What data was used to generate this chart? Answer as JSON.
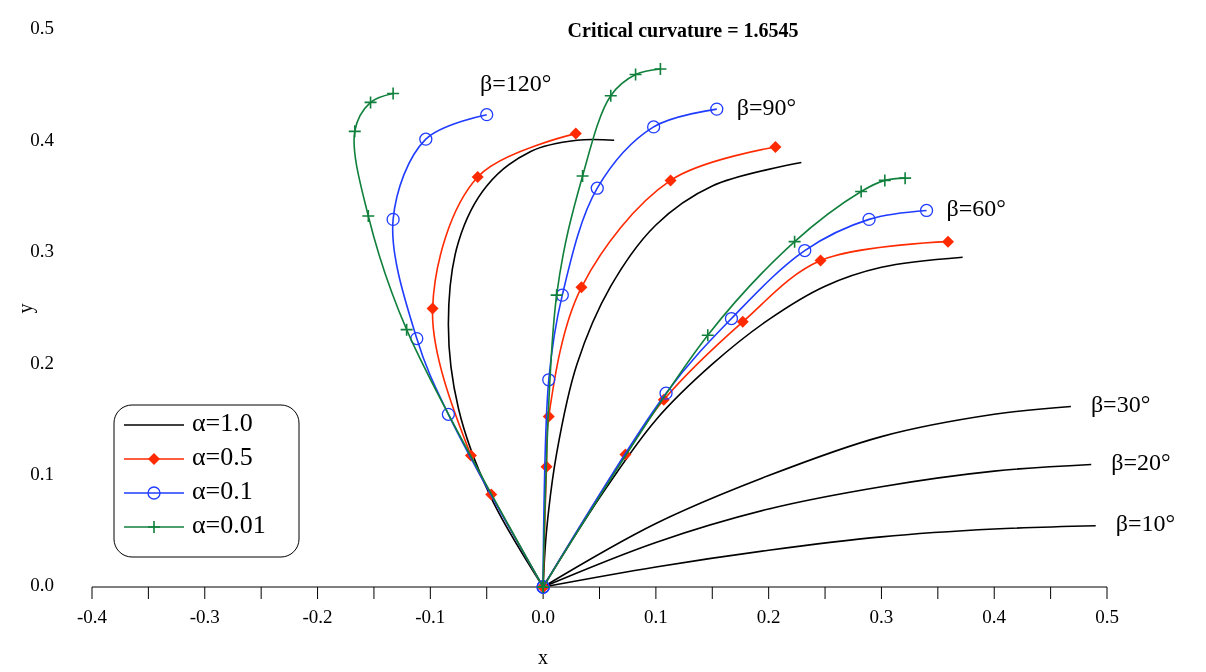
{
  "chart_data": {
    "type": "line",
    "title": "Critical curvature = 1.6545",
    "xlabel": "x",
    "ylabel": "y",
    "xlim": [
      -0.4,
      0.5
    ],
    "ylim": [
      0,
      0.5
    ],
    "xticks": [
      -0.4,
      {
        "value": -0.35,
        "label": null
      },
      -0.3,
      {
        "value": -0.25,
        "label": null
      },
      -0.2,
      {
        "value": -0.15,
        "label": null
      },
      -0.1,
      {
        "value": -0.05,
        "label": null
      },
      {
        "value": 0,
        "label": "0.0"
      },
      {
        "value": 0.05,
        "label": null
      },
      0.1,
      {
        "value": 0.15,
        "label": null
      },
      0.2,
      {
        "value": 0.25,
        "label": null
      },
      0.3,
      {
        "value": 0.35,
        "label": null
      },
      0.4,
      {
        "value": 0.45,
        "label": null
      },
      0.5
    ],
    "yticks": [
      {
        "value": 0,
        "label": "0.0"
      },
      0.1,
      0.2,
      0.3,
      0.4,
      0.5
    ],
    "grid": false,
    "legend": "bottom left",
    "line_style": "solid",
    "series": [
      {
        "name": "α=1.0",
        "color": "#000000",
        "marker": "none",
        "x": [
          0,
          0.1,
          0.2,
          0.3,
          0.4,
          0.49
        ],
        "values": [
          0,
          0.018,
          0.033,
          0.045,
          0.052,
          0.055
        ]
      },
      {
        "color": "#000000",
        "marker": "none",
        "x": [
          0,
          0.1,
          0.2,
          0.3,
          0.4,
          0.486
        ],
        "values": [
          0,
          0.04,
          0.07,
          0.09,
          0.104,
          0.11
        ]
      },
      {
        "color": "#000000",
        "marker": "none",
        "x": [
          0,
          0.1,
          0.2,
          0.3,
          0.4,
          0.468
        ],
        "values": [
          0,
          0.057,
          0.1,
          0.135,
          0.155,
          0.162
        ]
      },
      {
        "color": "#000000",
        "marker": "none",
        "x": [
          0,
          0.05,
          0.1,
          0.15,
          0.2,
          0.25,
          0.3,
          0.372
        ],
        "values": [
          0,
          0.08,
          0.15,
          0.2,
          0.24,
          0.27,
          0.287,
          0.296
        ]
      },
      {
        "color": "#000000",
        "marker": "none",
        "x": [
          0,
          0.003,
          0.012,
          0.03,
          0.06,
          0.1,
          0.15,
          0.229
        ],
        "values": [
          0,
          0.05,
          0.12,
          0.2,
          0.27,
          0.325,
          0.36,
          0.381
        ]
      },
      {
        "color": "#000000",
        "marker": "none",
        "x": [
          0,
          -0.047,
          -0.075,
          -0.084,
          -0.075,
          -0.05,
          -0.011,
          0.03,
          0.063
        ],
        "values": [
          0,
          0.082,
          0.16,
          0.236,
          0.31,
          0.36,
          0.391,
          0.401,
          0.401
        ]
      },
      {
        "name": "α=0.5",
        "color": "#ff2a00",
        "marker": "diamond",
        "x": [
          0,
          0.073,
          0.107,
          0.177,
          0.246,
          0.359
        ],
        "values": [
          0,
          0.119,
          0.168,
          0.238,
          0.293,
          0.31
        ]
      },
      {
        "color": "#ff2a00",
        "marker": "diamond",
        "x": [
          0,
          0.003,
          0.005,
          0.034,
          0.113,
          0.206
        ],
        "values": [
          0,
          0.108,
          0.153,
          0.269,
          0.365,
          0.395
        ]
      },
      {
        "color": "#ff2a00",
        "marker": "diamond",
        "x": [
          0,
          -0.046,
          -0.064,
          -0.098,
          -0.058,
          0.029
        ],
        "values": [
          0,
          0.083,
          0.118,
          0.25,
          0.368,
          0.407
        ]
      },
      {
        "name": "α=0.1",
        "color": "#1f3cff",
        "marker": "circle",
        "x": [
          0,
          0.109,
          0.167,
          0.232,
          0.289,
          0.34
        ],
        "values": [
          0,
          0.174,
          0.241,
          0.302,
          0.33,
          0.338
        ]
      },
      {
        "color": "#1f3cff",
        "marker": "circle",
        "x": [
          0,
          0.005,
          0.017,
          0.048,
          0.098,
          0.154
        ],
        "values": [
          0,
          0.186,
          0.262,
          0.358,
          0.413,
          0.429
        ]
      },
      {
        "color": "#1f3cff",
        "marker": "circle",
        "x": [
          0,
          -0.084,
          -0.112,
          -0.133,
          -0.104,
          -0.05
        ],
        "values": [
          0,
          0.155,
          0.223,
          0.33,
          0.402,
          0.424
        ]
      },
      {
        "name": "α=0.01",
        "color": "#10803c",
        "marker": "cross",
        "x": [
          0,
          0.146,
          0.223,
          0.282,
          0.303,
          0.321
        ],
        "values": [
          0,
          0.226,
          0.31,
          0.355,
          0.365,
          0.367
        ]
      },
      {
        "color": "#10803c",
        "marker": "cross",
        "x": [
          0,
          0.012,
          0.035,
          0.06,
          0.082,
          0.104
        ],
        "values": [
          0,
          0.262,
          0.369,
          0.441,
          0.46,
          0.465
        ]
      },
      {
        "color": "#10803c",
        "marker": "cross",
        "x": [
          0,
          -0.121,
          -0.155,
          -0.167,
          -0.153,
          -0.133
        ],
        "values": [
          0,
          0.231,
          0.333,
          0.409,
          0.435,
          0.443
        ]
      }
    ],
    "annotations": [
      {
        "text": "β=10°",
        "x": 0.49,
        "y": 0.055
      },
      {
        "text": "β=20°",
        "x": 0.486,
        "y": 0.11
      },
      {
        "text": "β=30°",
        "x": 0.468,
        "y": 0.162
      },
      {
        "text": "β=60°",
        "x": 0.34,
        "y": 0.338
      },
      {
        "text": "β=90°",
        "x": 0.154,
        "y": 0.429
      },
      "β=120°"
    ]
  }
}
